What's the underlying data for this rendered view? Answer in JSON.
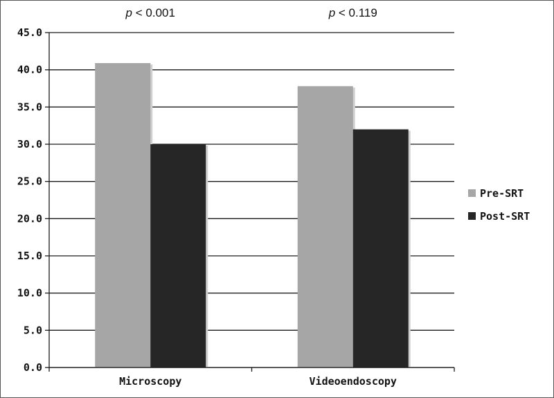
{
  "chart_data": {
    "type": "bar",
    "categories": [
      "Microscopy",
      "Videoendoscopy"
    ],
    "series": [
      {
        "name": "Pre-SRT",
        "values": [
          40.9,
          37.8
        ],
        "color": "#a6a6a6"
      },
      {
        "name": "Post-SRT",
        "values": [
          30.0,
          32.0
        ],
        "color": "#262626"
      }
    ],
    "ylim": [
      0,
      45
    ],
    "yticks": [
      "0.0",
      "5.0",
      "10.0",
      "15.0",
      "20.0",
      "25.0",
      "30.0",
      "35.0",
      "40.0",
      "45.0"
    ],
    "ytick_step": 5,
    "annotations": [
      {
        "category": "Microscopy",
        "italic": "p",
        "text": " < 0.001"
      },
      {
        "category": "Videoendoscopy",
        "italic": "p",
        "text": " < 0.119"
      }
    ],
    "grid": true,
    "legend_position": "right"
  }
}
